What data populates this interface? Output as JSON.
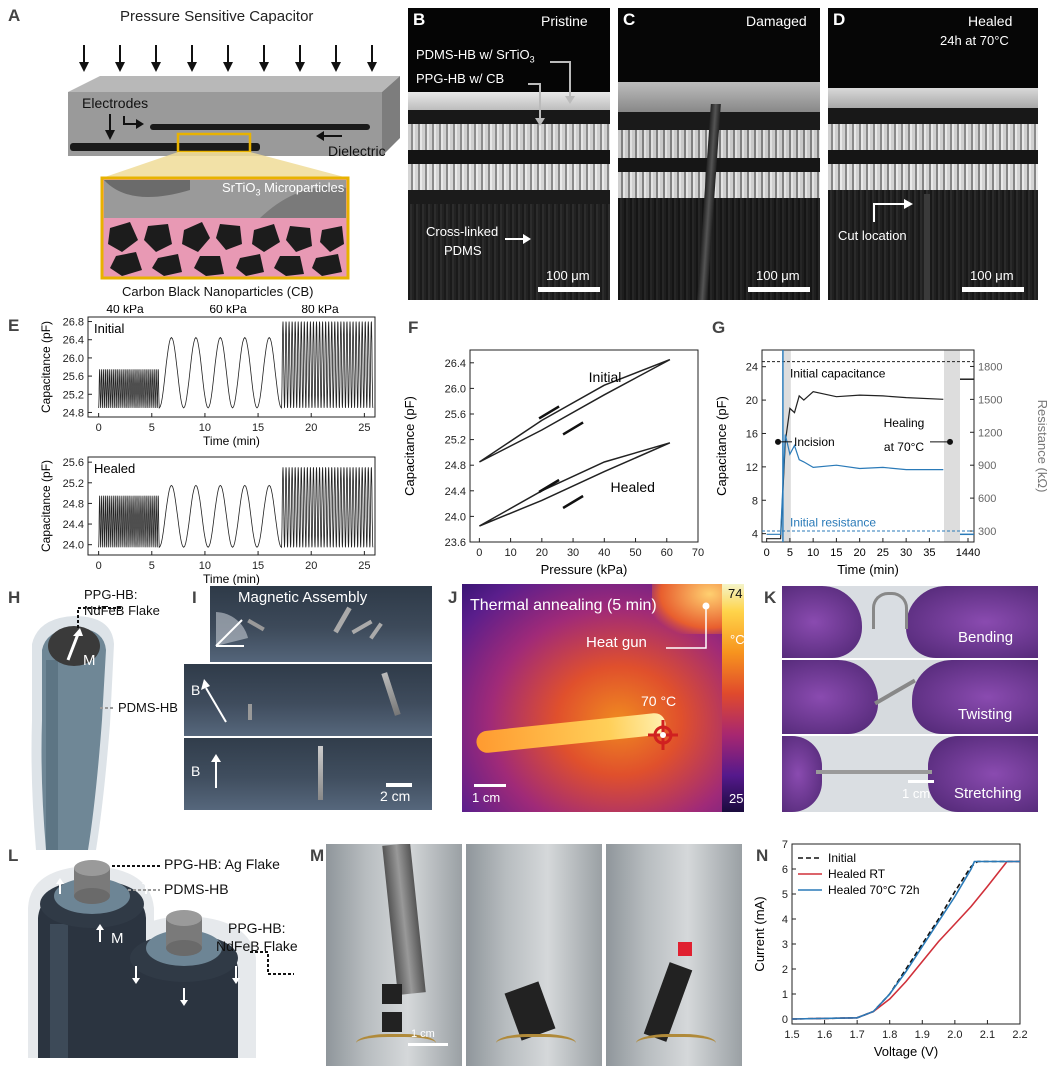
{
  "panels": {
    "A": "A",
    "B": "B",
    "C": "C",
    "D": "D",
    "E": "E",
    "F": "F",
    "G": "G",
    "H": "H",
    "I": "I",
    "J": "J",
    "K": "K",
    "L": "L",
    "M": "M",
    "N": "N"
  },
  "A": {
    "title": "Pressure Sensitive Capacitor",
    "electrodes": "Electrodes",
    "dielectric": "Dielectric",
    "srtio3_pre": "SrTiO",
    "srtio3_sub": "3",
    "srtio3_post": " Microparticles",
    "cb": "Carbon Black Nanoparticles (CB)"
  },
  "B": {
    "state": "Pristine",
    "pdms_pre": "PDMS-HB w/ SrTiO",
    "pdms_sub": "3",
    "ppg": "PPG-HB w/ CB",
    "crosslinked1": "Cross-linked",
    "crosslinked2": "PDMS",
    "scale": "100 μm"
  },
  "C": {
    "state": "Damaged",
    "scale": "100 μm"
  },
  "D": {
    "state": "Healed",
    "cond": "24h at 70°C",
    "cut": "Cut location",
    "scale": "100 μm"
  },
  "E": {
    "pressures": [
      "40 kPa",
      "60 kPa",
      "80 kPa"
    ],
    "top": {
      "label": "Initial",
      "ylabel": "Capacitance (pF)",
      "yticks": [
        "24.8",
        "25.2",
        "25.6",
        "26.0",
        "26.4",
        "26.8"
      ]
    },
    "bottom": {
      "label": "Healed",
      "ylabel": "Capacitance (pF)",
      "yticks": [
        "24.0",
        "24.4",
        "24.8",
        "25.2",
        "25.6"
      ]
    },
    "xticks": [
      "0",
      "5",
      "10",
      "15",
      "20",
      "25"
    ],
    "xlabel": "Time (min)"
  },
  "F": {
    "ylabel": "Capacitance (pF)",
    "xlabel": "Pressure (kPa)",
    "yticks": [
      "23.6",
      "24.0",
      "24.4",
      "24.8",
      "25.2",
      "25.6",
      "26.0",
      "26.4"
    ],
    "xticks": [
      "0",
      "10",
      "20",
      "30",
      "40",
      "50",
      "60",
      "70"
    ],
    "initial": "Initial",
    "healed": "Healed"
  },
  "G": {
    "ylabel": "Capacitance (pF)",
    "ylabel2": "Resistance (kΩ)",
    "xlabel": "Time (min)",
    "yticks": [
      "4",
      "8",
      "12",
      "16",
      "20",
      "24"
    ],
    "y2ticks": [
      "300",
      "600",
      "900",
      "1200",
      "1500",
      "1800"
    ],
    "xticks": [
      "0",
      "5",
      "10",
      "15",
      "20",
      "25",
      "30",
      "35",
      "1440"
    ],
    "init_cap": "Initial capacitance",
    "incision": "Incision",
    "healing1": "Healing",
    "healing2": "at 70°C",
    "init_res": "Initial resistance"
  },
  "H": {
    "ppg1": "PPG-HB:",
    "ppg2": "NdFeB Flake",
    "m": "M",
    "pdms": "PDMS-HB"
  },
  "I": {
    "title": "Magnetic Assembly",
    "b": "B",
    "scale": "2 cm"
  },
  "J": {
    "title": "Thermal annealing (5 min)",
    "gun": "Heat gun",
    "temp": "70 °C",
    "cmax": "74",
    "cmin": "25",
    "unit": "°C",
    "scale": "1 cm"
  },
  "K": {
    "bending": "Bending",
    "twisting": "Twisting",
    "stretching": "Stretching",
    "scale": "1 cm"
  },
  "L": {
    "ag": "PPG-HB: Ag Flake",
    "pdms": "PDMS-HB",
    "ndfeb1": "PPG-HB:",
    "ndfeb2": "NdFeB Flake",
    "m": "M"
  },
  "M": {
    "scale": "1 cm"
  },
  "N": {
    "ylabel": "Current (mA)",
    "xlabel": "Voltage (V)",
    "yticks": [
      "0",
      "1",
      "2",
      "3",
      "4",
      "5",
      "6",
      "7"
    ],
    "xticks": [
      "1.5",
      "1.6",
      "1.7",
      "1.8",
      "1.9",
      "2.0",
      "2.1",
      "2.2"
    ],
    "legend": [
      "Initial",
      "Healed RT",
      "Healed 70°C 72h"
    ]
  },
  "chart_data": [
    {
      "type": "line",
      "panel": "E-top",
      "title": "",
      "xlabel": "Time (min)",
      "ylabel": "Capacitance (pF)",
      "xlim": [
        -1,
        26
      ],
      "ylim": [
        24.7,
        26.9
      ],
      "series": [
        {
          "name": "Initial",
          "segments": [
            {
              "pressure": "40 kPa",
              "t": [
                0,
                5.7
              ],
              "min": 24.9,
              "max": 25.75,
              "cycles": 30
            },
            {
              "pressure": "60 kPa",
              "t": [
                5.7,
                17.2
              ],
              "min": 24.9,
              "max": 26.45,
              "cycles": 5
            },
            {
              "pressure": "80 kPa",
              "t": [
                17.2,
                25.8
              ],
              "min": 24.9,
              "max": 26.8,
              "cycles": 30
            }
          ]
        }
      ]
    },
    {
      "type": "line",
      "panel": "E-bottom",
      "title": "",
      "xlabel": "Time (min)",
      "ylabel": "Capacitance (pF)",
      "xlim": [
        -1,
        26
      ],
      "ylim": [
        23.8,
        25.7
      ],
      "series": [
        {
          "name": "Healed",
          "segments": [
            {
              "pressure": "40 kPa",
              "t": [
                0,
                5.7
              ],
              "min": 23.95,
              "max": 24.95,
              "cycles": 30
            },
            {
              "pressure": "60 kPa",
              "t": [
                5.7,
                17.2
              ],
              "min": 23.95,
              "max": 25.15,
              "cycles": 5
            },
            {
              "pressure": "80 kPa",
              "t": [
                17.2,
                25.8
              ],
              "min": 23.95,
              "max": 25.5,
              "cycles": 30
            }
          ]
        }
      ]
    },
    {
      "type": "line",
      "panel": "F",
      "title": "",
      "xlabel": "Pressure (kPa)",
      "ylabel": "Capacitance (pF)",
      "xlim": [
        -3,
        70
      ],
      "ylim": [
        23.6,
        26.6
      ],
      "series": [
        {
          "name": "Initial",
          "x": [
            0,
            20,
            40,
            61
          ],
          "y_load": [
            24.85,
            25.35,
            25.9,
            26.45
          ],
          "y_unload": [
            24.85,
            25.5,
            26.05,
            26.45
          ]
        },
        {
          "name": "Healed",
          "x": [
            0,
            20,
            40,
            61
          ],
          "y_load": [
            23.85,
            24.25,
            24.7,
            25.15
          ],
          "y_unload": [
            23.85,
            24.4,
            24.85,
            25.15
          ]
        }
      ]
    },
    {
      "type": "line",
      "panel": "G",
      "title": "",
      "xlabel": "Time (min)",
      "ylabel": "Capacitance (pF)",
      "ylabel2": "Resistance (kΩ)",
      "ylim": [
        3,
        26
      ],
      "y2lim": [
        200,
        1950
      ],
      "series": [
        {
          "name": "Capacitance",
          "axis": "left",
          "t": [
            0,
            3,
            4,
            5,
            6,
            7,
            8,
            10,
            15,
            20,
            25,
            30,
            38,
            1440
          ],
          "y": [
            3.4,
            3.4,
            15,
            19,
            18.5,
            20.5,
            20,
            21,
            20.4,
            20.6,
            20.5,
            20.3,
            20.1,
            22.5
          ]
        },
        {
          "name": "Resistance",
          "axis": "right",
          "t": [
            0,
            3,
            4,
            5,
            6,
            7,
            8,
            10,
            15,
            20,
            25,
            30,
            38,
            1440
          ],
          "y": [
            270,
            270,
            1180,
            1000,
            1080,
            950,
            930,
            880,
            900,
            870,
            880,
            860,
            860,
            270
          ]
        },
        {
          "name": "Initial capacitance",
          "axis": "left",
          "y": 24.6
        },
        {
          "name": "Initial resistance",
          "axis": "right",
          "y": 300
        }
      ]
    },
    {
      "type": "line",
      "panel": "N",
      "title": "",
      "xlabel": "Voltage (V)",
      "ylabel": "Current (mA)",
      "xlim": [
        1.5,
        2.2
      ],
      "ylim": [
        -0.2,
        7
      ],
      "series": [
        {
          "name": "Initial",
          "x": [
            1.5,
            1.7,
            1.75,
            1.8,
            1.85,
            1.9,
            1.95,
            2.0,
            2.05,
            2.07,
            2.2
          ],
          "y": [
            0,
            0.05,
            0.3,
            1.0,
            2.0,
            3.0,
            4.0,
            5.1,
            6.1,
            6.3,
            6.3
          ]
        },
        {
          "name": "Healed RT",
          "x": [
            1.5,
            1.7,
            1.75,
            1.8,
            1.85,
            1.9,
            1.95,
            2.0,
            2.05,
            2.1,
            2.16,
            2.2
          ],
          "y": [
            0,
            0.05,
            0.3,
            0.8,
            1.5,
            2.3,
            3.1,
            3.8,
            4.5,
            5.3,
            6.3,
            6.3
          ]
        },
        {
          "name": "Healed 70°C 72h",
          "x": [
            1.5,
            1.7,
            1.75,
            1.8,
            1.85,
            1.9,
            1.95,
            2.0,
            2.05,
            2.06,
            2.2
          ],
          "y": [
            0,
            0.05,
            0.3,
            1.0,
            1.9,
            2.9,
            3.9,
            4.9,
            6.0,
            6.3,
            6.3
          ]
        }
      ]
    }
  ]
}
